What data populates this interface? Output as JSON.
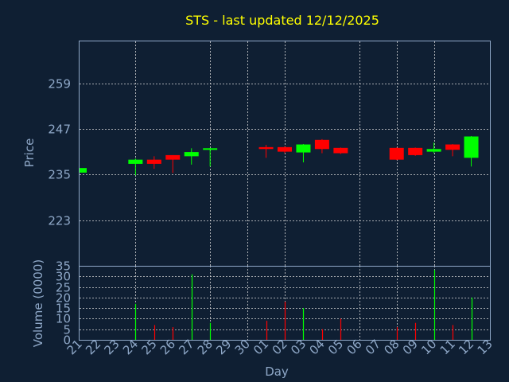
{
  "chart_data": {
    "title": "STS - last updated 12/12/2025",
    "xlabel": "Day",
    "colors": {
      "background": "#0f1f33",
      "up": "#00ff00",
      "down": "#ff0000",
      "text": "#8fa8c8",
      "title": "#ffff00",
      "grid": "#d8d8d8"
    },
    "x_tick_labels": [
      "21",
      "22",
      "23",
      "24",
      "25",
      "26",
      "27",
      "28",
      "29",
      "30",
      "01",
      "02",
      "03",
      "04",
      "05",
      "06",
      "07",
      "08",
      "09",
      "10",
      "11",
      "12",
      "13"
    ],
    "grid": true,
    "price_panel": {
      "type": "candlestick",
      "ylabel": "Price",
      "ylim": [
        211,
        270
      ],
      "yticks": [
        223,
        235,
        247,
        259
      ],
      "candles": [
        {
          "day": "21",
          "open": 235.5,
          "close": 236.7,
          "high": 236.7,
          "low": 235.5
        },
        {
          "day": "24",
          "open": 237.8,
          "close": 238.9,
          "high": 239.2,
          "low": 234.8
        },
        {
          "day": "25",
          "open": 238.9,
          "close": 237.8,
          "high": 239.8,
          "low": 236.5
        },
        {
          "day": "26",
          "open": 240.1,
          "close": 238.9,
          "high": 240.1,
          "low": 235.4
        },
        {
          "day": "27",
          "open": 239.8,
          "close": 240.9,
          "high": 241.9,
          "low": 237.6
        },
        {
          "day": "28",
          "open": 241.5,
          "close": 241.9,
          "high": 242.0,
          "low": 237.1
        },
        {
          "day": "01",
          "open": 242.2,
          "close": 241.7,
          "high": 242.8,
          "low": 239.4
        },
        {
          "day": "02",
          "open": 242.2,
          "close": 241.0,
          "high": 242.4,
          "low": 240.6
        },
        {
          "day": "03",
          "open": 240.8,
          "close": 242.9,
          "high": 243.0,
          "low": 238.2
        },
        {
          "day": "04",
          "open": 244.1,
          "close": 241.7,
          "high": 244.3,
          "low": 240.6
        },
        {
          "day": "05",
          "open": 242.0,
          "close": 240.6,
          "high": 242.1,
          "low": 240.4
        },
        {
          "day": "08",
          "open": 242.0,
          "close": 238.9,
          "high": 242.1,
          "low": 238.8
        },
        {
          "day": "09",
          "open": 242.0,
          "close": 240.1,
          "high": 242.1,
          "low": 239.9
        },
        {
          "day": "10",
          "open": 241.0,
          "close": 241.7,
          "high": 243.4,
          "low": 240.6
        },
        {
          "day": "11",
          "open": 242.9,
          "close": 241.5,
          "high": 243.0,
          "low": 239.8
        },
        {
          "day": "12",
          "open": 239.4,
          "close": 245.0,
          "high": 245.1,
          "low": 237.1
        }
      ]
    },
    "volume_panel": {
      "type": "bar",
      "ylabel": "Volume (0000)",
      "ylim": [
        0,
        35
      ],
      "yticks": [
        0,
        5,
        10,
        15,
        20,
        25,
        30,
        35
      ],
      "bars": [
        {
          "day": "24",
          "value": 17,
          "color": "#00ff00"
        },
        {
          "day": "25",
          "value": 7,
          "color": "#ff0000"
        },
        {
          "day": "26",
          "value": 6,
          "color": "#ff0000"
        },
        {
          "day": "27",
          "value": 31,
          "color": "#00ff00"
        },
        {
          "day": "28",
          "value": 8,
          "color": "#00ff00"
        },
        {
          "day": "01",
          "value": 9,
          "color": "#ff0000"
        },
        {
          "day": "02",
          "value": 18,
          "color": "#ff0000"
        },
        {
          "day": "03",
          "value": 15,
          "color": "#00ff00"
        },
        {
          "day": "04",
          "value": 5,
          "color": "#ff0000"
        },
        {
          "day": "05",
          "value": 10,
          "color": "#ff0000"
        },
        {
          "day": "08",
          "value": 6,
          "color": "#ff0000"
        },
        {
          "day": "09",
          "value": 8,
          "color": "#ff0000"
        },
        {
          "day": "10",
          "value": 33,
          "color": "#00ff00"
        },
        {
          "day": "11",
          "value": 7,
          "color": "#ff0000"
        },
        {
          "day": "12",
          "value": 20,
          "color": "#00ff00"
        }
      ]
    }
  }
}
